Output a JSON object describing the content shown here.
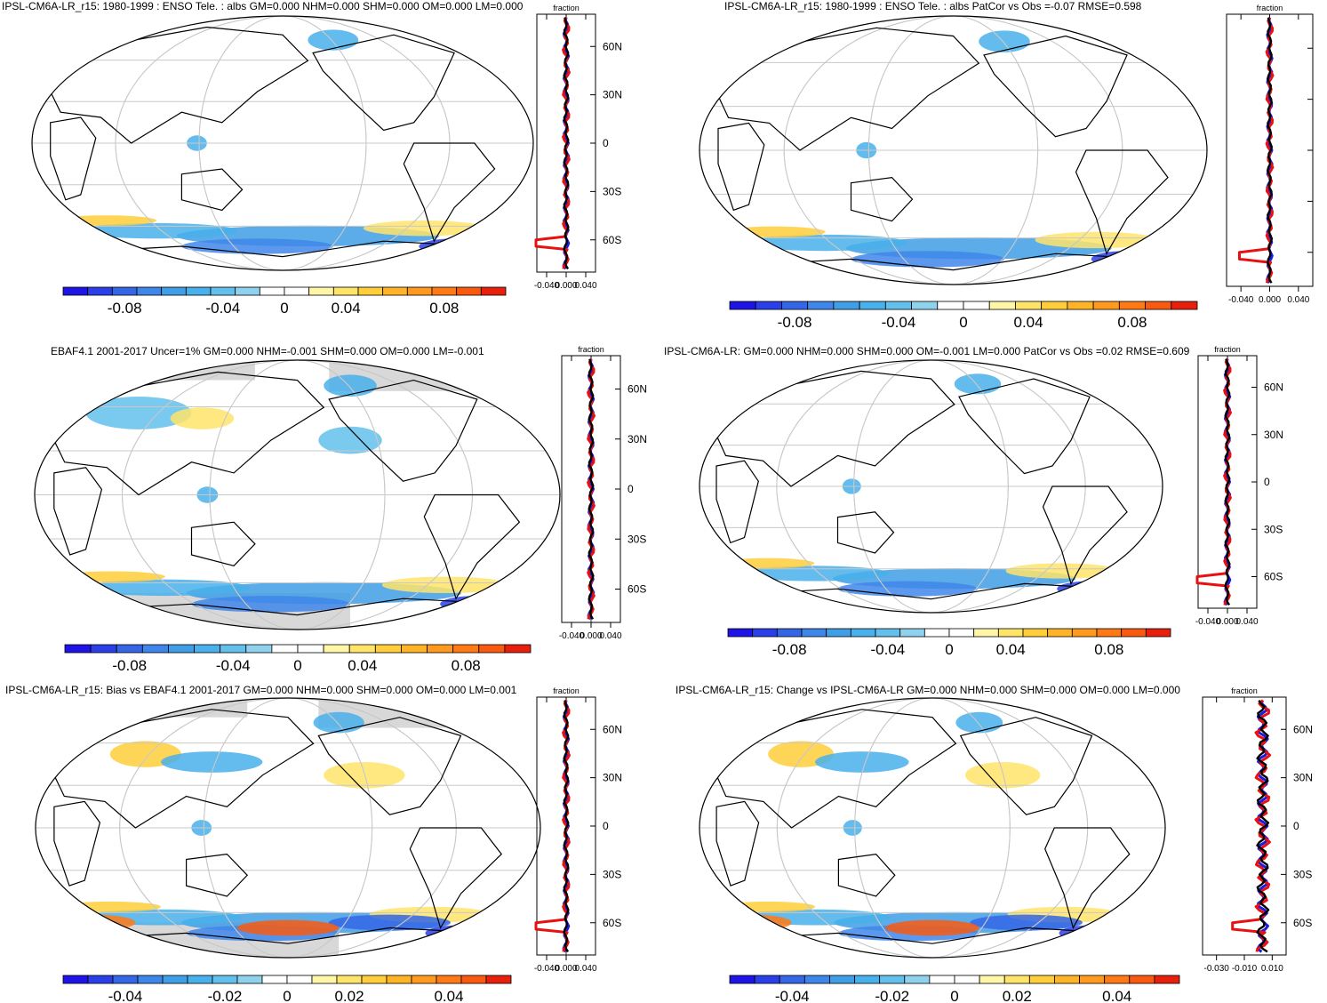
{
  "colors": {
    "palette": [
      "#1f14e6",
      "#2a3fe8",
      "#3566e6",
      "#3f86ea",
      "#409ee6",
      "#48b0ea",
      "#63c0ec",
      "#8fd2ee",
      "#ffffff",
      "#ffffff",
      "#fff6a8",
      "#ffe46a",
      "#ffce3a",
      "#ffb427",
      "#ff9a1e",
      "#ff7a14",
      "#fa5a10",
      "#e6200c"
    ],
    "land_grey": "#d8d8d8",
    "coast": "#000000",
    "grid": "#c8c8c8",
    "line_black": "#000000",
    "line_red": "#e81010",
    "line_blue": "#1a1ae0"
  },
  "panels": [
    {
      "id": "p1",
      "title": "IPSL-CM6A-LR_r15: 1980-1999 : ENSO Tele. : albs GM=0.000 NHM=0.000 SHM=0.000 OM=0.000 LM=0.000",
      "profile_label": "fraction",
      "lat_labels": [
        "60N",
        "30N",
        "0",
        "30S",
        "60S"
      ],
      "x_ticks": [
        "-0.040",
        "0.000",
        "0.040"
      ],
      "cbar_labels": [
        "-0.08",
        "-0.04",
        "0",
        "0.04",
        "0.08"
      ],
      "show_lat_labels": true
    },
    {
      "id": "p2",
      "title": "IPSL-CM6A-LR_r15: 1980-1999 : ENSO Tele. : albs PatCor vs Obs =-0.07 RMSE=0.598",
      "profile_label": "fraction",
      "lat_labels": [],
      "x_ticks": [
        "-0.040",
        "0.000",
        "0.040"
      ],
      "cbar_labels": [
        "-0.08",
        "-0.04",
        "0",
        "0.04",
        "0.08"
      ],
      "show_lat_labels": false
    },
    {
      "id": "p3",
      "title": "EBAF4.1 2001-2017 Uncer=1% GM=0.000 NHM=-0.001 SHM=0.000 OM=0.000 LM=-0.001",
      "profile_label": "fraction",
      "lat_labels": [
        "60N",
        "30N",
        "0",
        "30S",
        "60S"
      ],
      "x_ticks": [
        "-0.040",
        "0.000",
        "0.040"
      ],
      "cbar_labels": [
        "-0.08",
        "-0.04",
        "0",
        "0.04",
        "0.08"
      ],
      "show_lat_labels": true
    },
    {
      "id": "p4",
      "title": "IPSL-CM6A-LR: GM=0.000 NHM=0.000 SHM=0.000 OM=-0.001 LM=0.000 PatCor vs Obs =0.02 RMSE=0.609",
      "profile_label": "fraction",
      "lat_labels": [
        "60N",
        "30N",
        "0",
        "30S",
        "60S"
      ],
      "x_ticks": [
        "-0.040",
        "0.000",
        "0.040"
      ],
      "cbar_labels": [
        "-0.08",
        "-0.04",
        "0",
        "0.04",
        "0.08"
      ],
      "show_lat_labels": true
    },
    {
      "id": "p5",
      "title": "IPSL-CM6A-LR_r15: Bias vs EBAF4.1 2001-2017 GM=0.000 NHM=0.000 SHM=0.000 OM=0.000 LM=0.001",
      "profile_label": "fraction",
      "lat_labels": [
        "60N",
        "30N",
        "0",
        "30S",
        "60S"
      ],
      "x_ticks": [
        "-0.040",
        "0.000",
        "0.040"
      ],
      "cbar_labels": [
        "-0.04",
        "-0.02",
        "0",
        "0.02",
        "0.04"
      ],
      "show_lat_labels": true
    },
    {
      "id": "p6",
      "title": "IPSL-CM6A-LR_r15: Change vs IPSL-CM6A-LR GM=0.000 NHM=0.000 SHM=0.000 OM=0.000 LM=0.000",
      "profile_label": "fraction",
      "lat_labels": [
        "60N",
        "30N",
        "0",
        "30S",
        "60S"
      ],
      "x_ticks": [
        "-0.030",
        "-0.010",
        "0.010"
      ],
      "cbar_labels": [
        "-0.04",
        "-0.02",
        "0",
        "0.02",
        "0.04"
      ],
      "show_lat_labels": true
    }
  ]
}
